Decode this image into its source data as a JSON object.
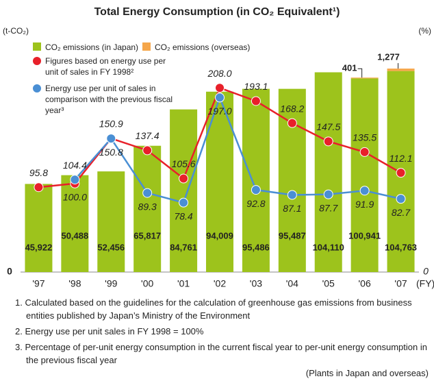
{
  "chart_data": {
    "type": "bar-line",
    "title": "Total Energy Consumption (in CO₂ Equivalent¹)",
    "y_label": "(t-CO₂)",
    "y2_label": "(%)",
    "x_label": "(FY)",
    "categories": [
      "'97",
      "'98",
      "'99",
      "'00",
      "'01",
      "'02",
      "'03",
      "'04",
      "'05",
      "'06",
      "'07"
    ],
    "ylim": [
      0,
      120000
    ],
    "yticks": [
      0
    ],
    "y2lim": [
      0,
      260
    ],
    "y2ticks": [
      0
    ],
    "series": [
      {
        "name": "CO₂ emissions (in Japan)",
        "type": "bar",
        "color": "#9dc31c",
        "values": [
          45922,
          50488,
          52456,
          65817,
          84761,
          94009,
          95486,
          95487,
          104110,
          100941,
          104763
        ],
        "value_labels": [
          "45,922",
          "50,488",
          "52,456",
          "65,817",
          "84,761",
          "94,009",
          "95,486",
          "95,487",
          "104,110",
          "100,941",
          "104,763"
        ]
      },
      {
        "name": "CO₂ emissions (overseas)",
        "type": "bar",
        "color": "#f5a64a",
        "values": [
          null,
          null,
          null,
          null,
          null,
          null,
          null,
          null,
          null,
          401,
          1277
        ],
        "value_labels": [
          null,
          null,
          null,
          null,
          null,
          null,
          null,
          null,
          null,
          "401",
          "1,277"
        ]
      },
      {
        "name": "Figures based on energy use per unit of sales in FY 1998²",
        "type": "line",
        "axis": "y2",
        "color": "#e8202a",
        "values": [
          95.8,
          100,
          150.9,
          137.4,
          105.6,
          208,
          193.1,
          168.2,
          147.5,
          135.5,
          112.1
        ],
        "value_labels": [
          "95.8",
          "100.0",
          "150.9",
          "137.4",
          "105.6",
          "208.0",
          "193.1",
          "168.2",
          "147.5",
          "135.5",
          "112.1"
        ]
      },
      {
        "name": "Energy use per unit of sales in comparison with the previous fiscal year³",
        "type": "line",
        "axis": "y2",
        "color": "#4a8fd4",
        "values": [
          null,
          104.4,
          150.8,
          89.3,
          78.4,
          197,
          92.8,
          87.1,
          87.7,
          91.9,
          82.7
        ],
        "value_labels": [
          null,
          "104.4",
          "150.8",
          "89.3",
          "78.4",
          "197.0",
          "92.8",
          "87.1",
          "87.7",
          "91.9",
          "82.7"
        ]
      }
    ],
    "notes": [
      "1. Calculated based on the guidelines for the calculation of greenhouse gas emissions from business entities published by Japan’s Ministry of the Environment",
      "2. Energy use per unit sales in FY 1998 = 100%",
      "3. Percentage of per-unit energy consumption in the current fiscal year to per-unit energy consumption in the previous fiscal year"
    ],
    "footer": "(Plants in Japan and overseas)"
  }
}
